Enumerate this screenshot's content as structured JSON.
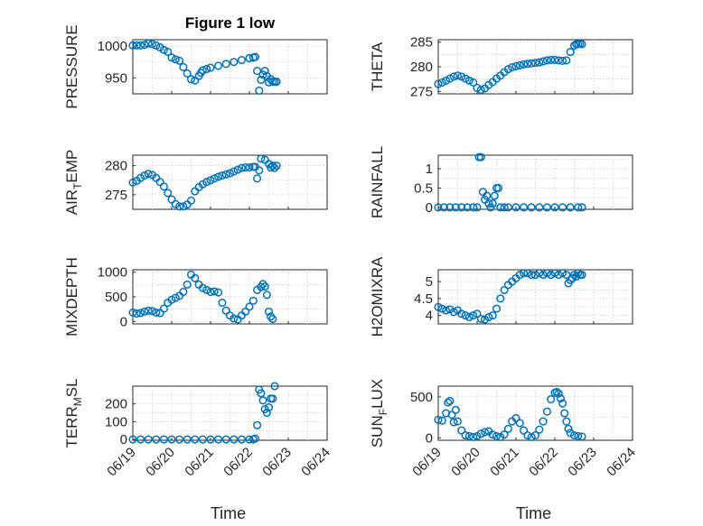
{
  "figure_title": "Figure 1 low",
  "xlabel": "Time",
  "marker_color": "#0072bd",
  "chart_data": [
    {
      "type": "scatter",
      "ylabel": "PRESSURE",
      "xlim": [
        "06/19",
        "06/24"
      ],
      "ylim": [
        925,
        1010
      ],
      "yticks": [
        "950",
        "1000"
      ],
      "xtick_labels": [],
      "grid": true,
      "x": [
        0.0,
        0.1,
        0.2,
        0.3,
        0.4,
        0.5,
        0.6,
        0.7,
        0.8,
        0.9,
        1.0,
        1.1,
        1.2,
        1.3,
        1.4,
        1.5,
        1.6,
        1.7,
        1.75,
        1.8,
        1.9,
        2.0,
        2.2,
        2.4,
        2.6,
        2.8,
        3.0,
        3.1,
        3.15,
        3.2,
        3.25,
        3.3,
        3.35,
        3.4,
        3.45,
        3.5,
        3.55,
        3.6,
        3.65,
        3.7
      ],
      "y": [
        1001,
        1001,
        1001,
        1002,
        1004,
        1003,
        1001,
        998,
        994,
        991,
        982,
        979,
        977,
        967,
        957,
        948,
        946,
        953,
        958,
        962,
        964,
        966,
        969,
        972,
        975,
        978,
        981,
        982,
        983,
        961,
        930,
        947,
        955,
        961,
        953,
        943,
        948,
        944,
        944,
        944
      ]
    },
    {
      "type": "scatter",
      "ylabel": "THETA",
      "xlim": [
        "06/19",
        "06/24"
      ],
      "ylim": [
        274.5,
        285.5
      ],
      "yticks": [
        "275",
        "280",
        "285"
      ],
      "xtick_labels": [],
      "grid": true,
      "x": [
        0.0,
        0.1,
        0.2,
        0.3,
        0.4,
        0.5,
        0.6,
        0.7,
        0.8,
        0.9,
        1.0,
        1.1,
        1.2,
        1.3,
        1.4,
        1.5,
        1.6,
        1.7,
        1.8,
        1.9,
        2.0,
        2.1,
        2.2,
        2.3,
        2.4,
        2.5,
        2.6,
        2.7,
        2.8,
        2.9,
        3.0,
        3.1,
        3.2,
        3.3,
        3.4,
        3.5,
        3.55,
        3.6,
        3.65,
        3.7
      ],
      "y": [
        276.5,
        276.8,
        277.2,
        277.6,
        278.0,
        278.2,
        278.0,
        277.6,
        277.2,
        276.8,
        275.7,
        275.3,
        275.6,
        276.3,
        276.9,
        277.6,
        278.2,
        278.9,
        279.5,
        279.9,
        280.1,
        280.3,
        280.5,
        280.6,
        280.7,
        280.8,
        280.9,
        281.1,
        281.3,
        281.4,
        281.4,
        281.3,
        281.2,
        281.3,
        283.0,
        284.3,
        284.6,
        284.6,
        284.7,
        284.6
      ]
    },
    {
      "type": "scatter",
      "ylabel": "AIR_TEMP",
      "xlim": [
        "06/19",
        "06/24"
      ],
      "ylim": [
        272.5,
        281.8
      ],
      "yticks": [
        "275",
        "280"
      ],
      "xtick_labels": [],
      "grid": true,
      "x": [
        0.0,
        0.1,
        0.2,
        0.3,
        0.4,
        0.5,
        0.6,
        0.7,
        0.8,
        0.9,
        1.0,
        1.1,
        1.2,
        1.3,
        1.4,
        1.5,
        1.6,
        1.7,
        1.8,
        1.9,
        2.0,
        2.1,
        2.2,
        2.3,
        2.4,
        2.5,
        2.6,
        2.7,
        2.8,
        2.9,
        3.0,
        3.1,
        3.15,
        3.2,
        3.25,
        3.3,
        3.4,
        3.5,
        3.55,
        3.6,
        3.65,
        3.7
      ],
      "y": [
        277.1,
        277.4,
        277.9,
        278.3,
        278.6,
        278.4,
        277.9,
        277.2,
        276.4,
        275.3,
        274.2,
        273.4,
        273.0,
        273.0,
        273.3,
        274.0,
        275.6,
        276.3,
        276.8,
        277.2,
        277.5,
        277.8,
        278.1,
        278.3,
        278.5,
        278.7,
        279.0,
        279.3,
        279.6,
        279.7,
        279.7,
        279.8,
        279.8,
        277.8,
        279.2,
        281.2,
        281.0,
        280.3,
        279.7,
        280.0,
        279.6,
        280.0
      ]
    },
    {
      "type": "scatter",
      "ylabel": "RAINFALL",
      "xlim": [
        "06/19",
        "06/24"
      ],
      "ylim": [
        -0.05,
        1.35
      ],
      "yticks": [
        "0",
        "0.5",
        "1"
      ],
      "xtick_labels": [],
      "grid": true,
      "x": [
        0.0,
        0.15,
        0.3,
        0.45,
        0.6,
        0.75,
        0.9,
        1.0,
        1.05,
        1.1,
        1.15,
        1.2,
        1.25,
        1.3,
        1.35,
        1.4,
        1.45,
        1.5,
        1.55,
        1.6,
        1.7,
        1.8,
        2.0,
        2.2,
        2.4,
        2.6,
        2.8,
        3.0,
        3.2,
        3.4,
        3.6,
        3.7
      ],
      "y": [
        0,
        0,
        0,
        0,
        0,
        0,
        0,
        0,
        1.3,
        1.3,
        0.4,
        0.2,
        0.3,
        0.1,
        0,
        0.1,
        0.3,
        0.5,
        0.5,
        0,
        0,
        0,
        0,
        0,
        0,
        0,
        0,
        0,
        0,
        0,
        0,
        0
      ]
    },
    {
      "type": "scatter",
      "ylabel": "MIXDEPTH",
      "xlim": [
        "06/19",
        "06/24"
      ],
      "ylim": [
        -50,
        1050
      ],
      "yticks": [
        "0",
        "500",
        "1000"
      ],
      "xtick_labels": [],
      "grid": true,
      "x": [
        0.0,
        0.1,
        0.2,
        0.3,
        0.4,
        0.5,
        0.6,
        0.7,
        0.8,
        0.9,
        1.0,
        1.1,
        1.2,
        1.3,
        1.4,
        1.5,
        1.6,
        1.7,
        1.8,
        1.9,
        2.0,
        2.1,
        2.2,
        2.3,
        2.4,
        2.5,
        2.6,
        2.7,
        2.8,
        2.9,
        3.0,
        3.1,
        3.2,
        3.3,
        3.35,
        3.4,
        3.45,
        3.5,
        3.55,
        3.6
      ],
      "y": [
        180,
        160,
        170,
        200,
        220,
        210,
        180,
        170,
        260,
        380,
        440,
        480,
        520,
        600,
        750,
        950,
        880,
        750,
        680,
        640,
        600,
        610,
        590,
        380,
        220,
        120,
        60,
        40,
        120,
        200,
        300,
        420,
        640,
        700,
        760,
        710,
        540,
        200,
        100,
        50
      ]
    },
    {
      "type": "scatter",
      "ylabel": "H2OMIXRA",
      "xlim": [
        "06/19",
        "06/24"
      ],
      "ylim": [
        3.75,
        5.35
      ],
      "yticks": [
        "4",
        "4.5",
        "5"
      ],
      "xtick_labels": [],
      "grid": true,
      "x": [
        0.0,
        0.1,
        0.2,
        0.3,
        0.4,
        0.5,
        0.6,
        0.7,
        0.8,
        0.9,
        1.0,
        1.1,
        1.2,
        1.3,
        1.4,
        1.5,
        1.6,
        1.7,
        1.8,
        1.9,
        2.0,
        2.1,
        2.2,
        2.3,
        2.4,
        2.5,
        2.6,
        2.7,
        2.8,
        2.9,
        3.0,
        3.1,
        3.2,
        3.3,
        3.35,
        3.4,
        3.45,
        3.5,
        3.55,
        3.6,
        3.65,
        3.7
      ],
      "y": [
        4.25,
        4.2,
        4.15,
        4.18,
        4.1,
        4.15,
        4.05,
        4.0,
        3.95,
        4.0,
        4.05,
        3.9,
        3.88,
        3.95,
        4.0,
        4.2,
        4.5,
        4.75,
        4.9,
        5.0,
        5.1,
        5.2,
        5.25,
        5.25,
        5.2,
        5.2,
        5.25,
        5.2,
        5.25,
        5.2,
        5.25,
        5.2,
        5.25,
        5.2,
        4.95,
        5.05,
        5.1,
        5.2,
        5.15,
        5.25,
        5.2,
        5.2
      ]
    },
    {
      "type": "scatter",
      "ylabel": "TERR_MSL",
      "xlim": [
        "06/19",
        "06/24"
      ],
      "ylim": [
        -5,
        300
      ],
      "yticks": [
        "0",
        "100",
        "200"
      ],
      "xtick_labels": [
        "06/19",
        "06/20",
        "06/21",
        "06/22",
        "06/23",
        "06/24"
      ],
      "grid": true,
      "x": [
        0.0,
        0.2,
        0.4,
        0.6,
        0.8,
        1.0,
        1.2,
        1.4,
        1.6,
        1.8,
        2.0,
        2.2,
        2.4,
        2.6,
        2.8,
        3.0,
        3.1,
        3.15,
        3.2,
        3.25,
        3.3,
        3.35,
        3.4,
        3.45,
        3.5,
        3.55,
        3.6,
        3.65
      ],
      "y": [
        0,
        0,
        0,
        0,
        0,
        0,
        0,
        0,
        0,
        0,
        0,
        0,
        0,
        0,
        0,
        0,
        0,
        5,
        80,
        280,
        260,
        220,
        170,
        150,
        180,
        230,
        230,
        300
      ]
    },
    {
      "type": "scatter",
      "ylabel": "SUN_FLUX",
      "xlim": [
        "06/19",
        "06/24"
      ],
      "ylim": [
        -30,
        630
      ],
      "yticks": [
        "0",
        "500"
      ],
      "xtick_labels": [
        "06/19",
        "06/20",
        "06/21",
        "06/22",
        "06/23",
        "06/24"
      ],
      "grid": true,
      "x": [
        0.0,
        0.1,
        0.2,
        0.25,
        0.3,
        0.35,
        0.4,
        0.45,
        0.5,
        0.6,
        0.7,
        0.8,
        0.9,
        1.0,
        1.1,
        1.2,
        1.3,
        1.4,
        1.5,
        1.6,
        1.7,
        1.8,
        1.9,
        2.0,
        2.1,
        2.2,
        2.3,
        2.4,
        2.5,
        2.6,
        2.7,
        2.8,
        2.9,
        3.0,
        3.05,
        3.1,
        3.15,
        3.2,
        3.25,
        3.3,
        3.35,
        3.4,
        3.5,
        3.6,
        3.7
      ],
      "y": [
        220,
        210,
        300,
        430,
        450,
        280,
        190,
        340,
        200,
        90,
        30,
        20,
        10,
        20,
        50,
        70,
        80,
        40,
        20,
        10,
        40,
        110,
        200,
        240,
        180,
        90,
        30,
        10,
        30,
        100,
        200,
        320,
        470,
        550,
        560,
        540,
        480,
        420,
        300,
        200,
        110,
        60,
        30,
        20,
        15
      ]
    }
  ]
}
